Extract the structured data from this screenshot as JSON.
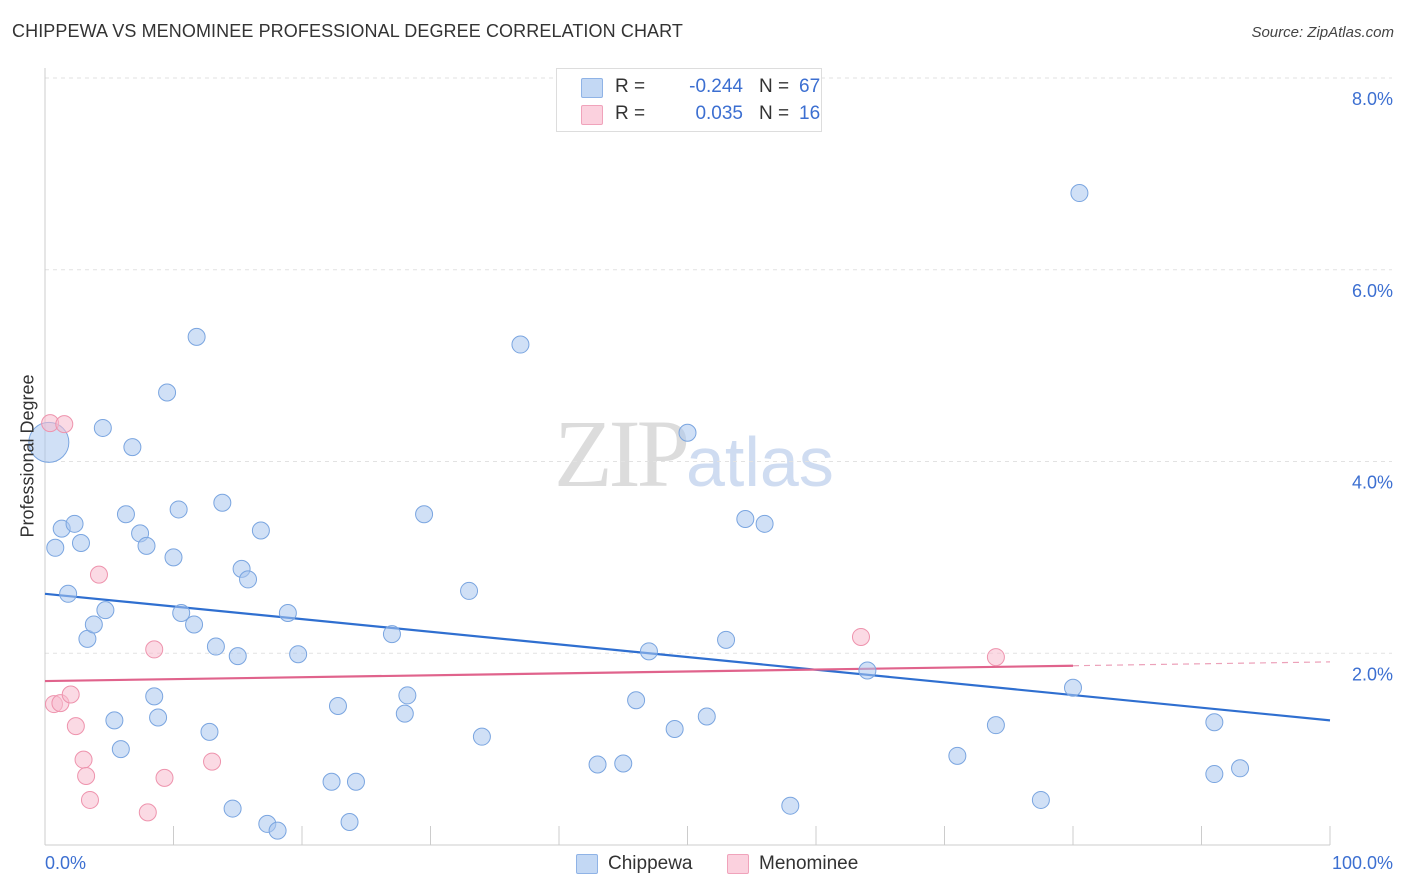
{
  "title": "CHIPPEWA VS MENOMINEE PROFESSIONAL DEGREE CORRELATION CHART",
  "source": "Source: ZipAtlas.com",
  "watermark": {
    "zip": "ZIP",
    "atlas": "atlas"
  },
  "legend": {
    "rows": [
      {
        "r_label": "R =",
        "r_value": "-0.244",
        "n_label": "N =",
        "n_value": "67",
        "color": "#a9c7ef"
      },
      {
        "r_label": "R =",
        "r_value": "0.035",
        "n_label": "N =",
        "n_value": "16",
        "color": "#f7bccd"
      }
    ]
  },
  "bottom_legend": [
    {
      "label": "Chippewa",
      "color": "#a9c7ef"
    },
    {
      "label": "Menominee",
      "color": "#f7bccd"
    }
  ],
  "chart_data": {
    "type": "scatter",
    "title": "CHIPPEWA VS MENOMINEE PROFESSIONAL DEGREE CORRELATION CHART",
    "xlabel": "",
    "ylabel": "Professional Degree",
    "xlim": [
      0,
      100
    ],
    "ylim": [
      0,
      8
    ],
    "x_tick_labels": [
      "0.0%",
      "100.0%"
    ],
    "y_ticks": [
      2,
      4,
      6,
      8
    ],
    "y_tick_labels": [
      "2.0%",
      "4.0%",
      "6.0%",
      "8.0%"
    ],
    "grid": true,
    "legend_position": "top-center",
    "series": [
      {
        "name": "Chippewa",
        "color": "#a9c7ef",
        "stroke": "#7aa5e0",
        "trend_color": "#2f6fd0",
        "trend": {
          "x0": 0,
          "y0": 2.62,
          "x1": 100,
          "y1": 1.3
        },
        "points": [
          {
            "x": 0.3,
            "y": 4.2,
            "big": true
          },
          {
            "x": 0.8,
            "y": 3.1
          },
          {
            "x": 1.3,
            "y": 3.3
          },
          {
            "x": 1.8,
            "y": 2.62
          },
          {
            "x": 2.3,
            "y": 3.35
          },
          {
            "x": 2.8,
            "y": 3.15
          },
          {
            "x": 3.3,
            "y": 2.15
          },
          {
            "x": 3.8,
            "y": 2.3
          },
          {
            "x": 4.5,
            "y": 4.35
          },
          {
            "x": 4.7,
            "y": 2.45
          },
          {
            "x": 5.4,
            "y": 1.3
          },
          {
            "x": 5.9,
            "y": 1.0
          },
          {
            "x": 6.3,
            "y": 3.45
          },
          {
            "x": 6.8,
            "y": 4.15
          },
          {
            "x": 7.4,
            "y": 3.25
          },
          {
            "x": 7.9,
            "y": 3.12
          },
          {
            "x": 8.5,
            "y": 1.55
          },
          {
            "x": 8.8,
            "y": 1.33
          },
          {
            "x": 9.5,
            "y": 4.72
          },
          {
            "x": 10.0,
            "y": 3.0
          },
          {
            "x": 10.4,
            "y": 3.5
          },
          {
            "x": 10.6,
            "y": 2.42
          },
          {
            "x": 11.6,
            "y": 2.3
          },
          {
            "x": 11.8,
            "y": 5.3
          },
          {
            "x": 12.8,
            "y": 1.18
          },
          {
            "x": 13.3,
            "y": 2.07
          },
          {
            "x": 13.8,
            "y": 3.57
          },
          {
            "x": 14.6,
            "y": 0.38
          },
          {
            "x": 15.0,
            "y": 1.97
          },
          {
            "x": 15.3,
            "y": 2.88
          },
          {
            "x": 15.8,
            "y": 2.77
          },
          {
            "x": 16.8,
            "y": 3.28
          },
          {
            "x": 17.3,
            "y": 0.22
          },
          {
            "x": 18.1,
            "y": 0.15
          },
          {
            "x": 18.9,
            "y": 2.42
          },
          {
            "x": 19.7,
            "y": 1.99
          },
          {
            "x": 22.3,
            "y": 0.66
          },
          {
            "x": 22.8,
            "y": 1.45
          },
          {
            "x": 23.7,
            "y": 0.24
          },
          {
            "x": 24.2,
            "y": 0.66
          },
          {
            "x": 27.0,
            "y": 2.2
          },
          {
            "x": 28.0,
            "y": 1.37
          },
          {
            "x": 28.2,
            "y": 1.56
          },
          {
            "x": 29.5,
            "y": 3.45
          },
          {
            "x": 33.0,
            "y": 2.65
          },
          {
            "x": 34.0,
            "y": 1.13
          },
          {
            "x": 37.0,
            "y": 5.22
          },
          {
            "x": 43.0,
            "y": 0.84
          },
          {
            "x": 45.0,
            "y": 0.85
          },
          {
            "x": 46.0,
            "y": 1.51
          },
          {
            "x": 47.0,
            "y": 2.02
          },
          {
            "x": 49.0,
            "y": 1.21
          },
          {
            "x": 50.0,
            "y": 4.3
          },
          {
            "x": 51.5,
            "y": 1.34
          },
          {
            "x": 53.0,
            "y": 2.14
          },
          {
            "x": 54.5,
            "y": 3.4
          },
          {
            "x": 56.0,
            "y": 3.35
          },
          {
            "x": 58.0,
            "y": 0.41
          },
          {
            "x": 64.0,
            "y": 1.82
          },
          {
            "x": 71.0,
            "y": 0.93
          },
          {
            "x": 74.0,
            "y": 1.25
          },
          {
            "x": 77.5,
            "y": 0.47
          },
          {
            "x": 80.0,
            "y": 1.64
          },
          {
            "x": 80.5,
            "y": 6.8
          },
          {
            "x": 91.0,
            "y": 1.28
          },
          {
            "x": 91.0,
            "y": 0.74
          },
          {
            "x": 93.0,
            "y": 0.8
          }
        ]
      },
      {
        "name": "Menominee",
        "color": "#f7bccd",
        "stroke": "#ee93ad",
        "trend_color": "#e0638c",
        "trend": {
          "x0": 0,
          "y0": 1.71,
          "x1": 80,
          "y1": 1.87
        },
        "trend_dashed_to": 100,
        "points": [
          {
            "x": 0.4,
            "y": 4.4
          },
          {
            "x": 1.5,
            "y": 4.39
          },
          {
            "x": 0.7,
            "y": 1.47
          },
          {
            "x": 1.2,
            "y": 1.48
          },
          {
            "x": 2.0,
            "y": 1.57
          },
          {
            "x": 2.4,
            "y": 1.24
          },
          {
            "x": 3.0,
            "y": 0.89
          },
          {
            "x": 3.2,
            "y": 0.72
          },
          {
            "x": 3.5,
            "y": 0.47
          },
          {
            "x": 4.2,
            "y": 2.82
          },
          {
            "x": 8.0,
            "y": 0.34
          },
          {
            "x": 8.5,
            "y": 2.04
          },
          {
            "x": 9.3,
            "y": 0.7
          },
          {
            "x": 13.0,
            "y": 0.87
          },
          {
            "x": 63.5,
            "y": 2.17
          },
          {
            "x": 74.0,
            "y": 1.96
          }
        ]
      }
    ]
  }
}
